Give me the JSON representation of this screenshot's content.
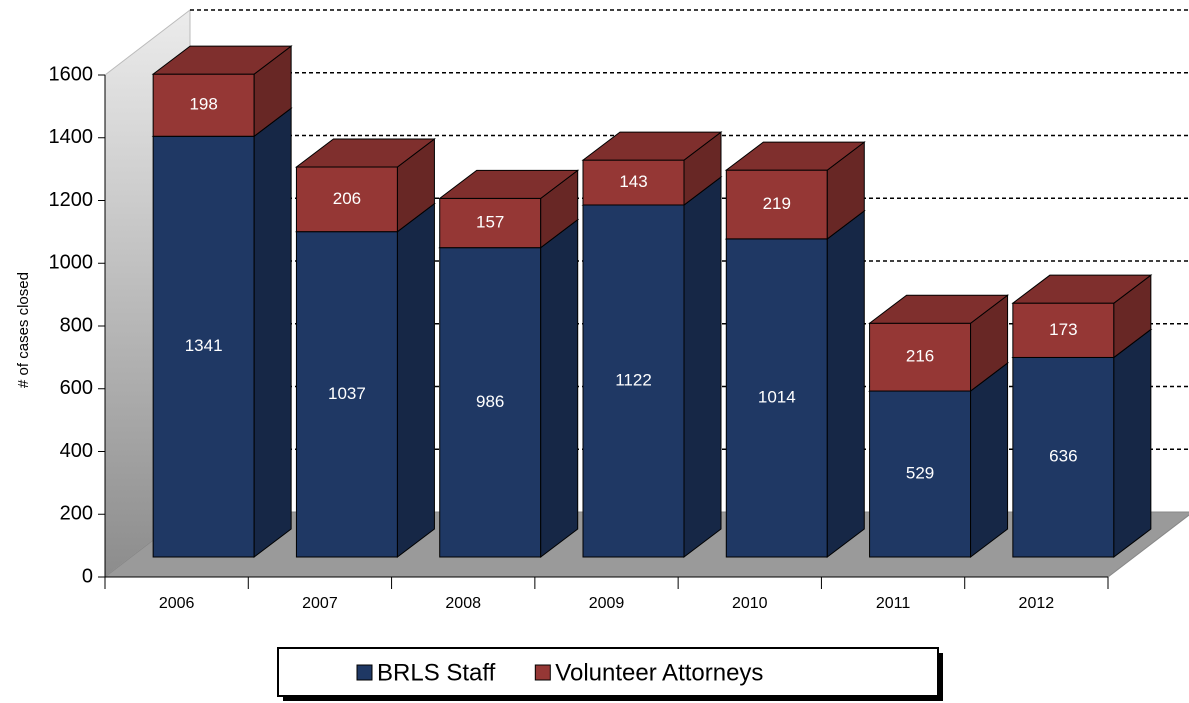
{
  "chart_data": {
    "type": "bar3d_stacked",
    "y_label": "# of cases closed",
    "categories": [
      "2006",
      "2007",
      "2008",
      "2009",
      "2010",
      "2011",
      "2012"
    ],
    "series": [
      {
        "name": "BRLS Staff",
        "color": "#1f3864",
        "values": [
          1341,
          1037,
          986,
          1122,
          1014,
          529,
          636
        ]
      },
      {
        "name": "Volunteer Attorneys",
        "color": "#953735",
        "values": [
          198,
          206,
          157,
          143,
          219,
          216,
          173
        ]
      }
    ],
    "ylim": [
      0,
      1600
    ],
    "yticks": [
      0,
      200,
      400,
      600,
      800,
      1000,
      1200,
      1400,
      1600
    ],
    "grid": true,
    "legend": "bottom"
  }
}
